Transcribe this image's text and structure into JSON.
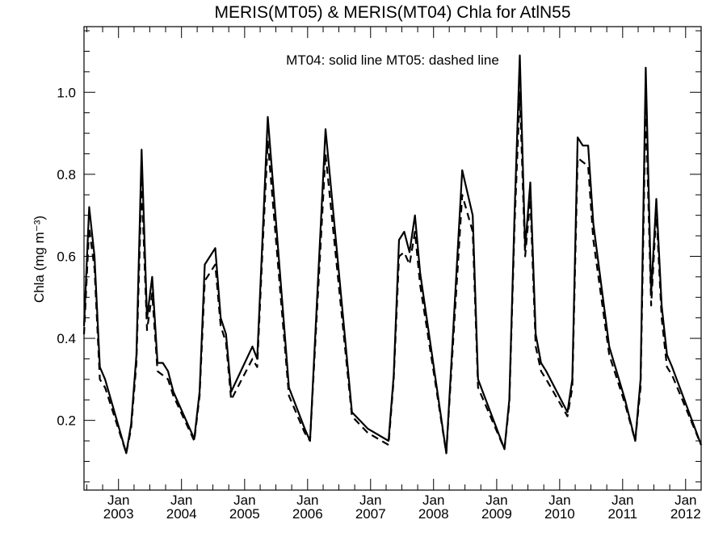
{
  "chart_data": {
    "type": "line",
    "title": "MERIS(MT05) & MERIS(MT04)  Chla for AtlN55",
    "annotation": "MT04: solid line   MT05: dashed line",
    "ylabel": "Chla (mg m⁻³)",
    "xlabel": "",
    "xlim": [
      "2002-06-15",
      "2012-03-31"
    ],
    "ylim": [
      0.03,
      1.16
    ],
    "y_ticks": [
      0.2,
      0.4,
      0.6,
      0.8,
      1.0
    ],
    "y_tick_labels": [
      "0.2",
      "0.4",
      "0.6",
      "0.8",
      "1.0"
    ],
    "x_ticks": [
      {
        "date": "2003-01-01",
        "month": "Jan",
        "year": "2003"
      },
      {
        "date": "2004-01-01",
        "month": "Jan",
        "year": "2004"
      },
      {
        "date": "2005-01-01",
        "month": "Jan",
        "year": "2005"
      },
      {
        "date": "2006-01-01",
        "month": "Jan",
        "year": "2006"
      },
      {
        "date": "2007-01-01",
        "month": "Jan",
        "year": "2007"
      },
      {
        "date": "2008-01-01",
        "month": "Jan",
        "year": "2008"
      },
      {
        "date": "2009-01-01",
        "month": "Jan",
        "year": "2009"
      },
      {
        "date": "2010-01-01",
        "month": "Jan",
        "year": "2010"
      },
      {
        "date": "2011-01-01",
        "month": "Jan",
        "year": "2011"
      },
      {
        "date": "2012-01-01",
        "month": "Jan",
        "year": "2012"
      }
    ],
    "grid": false,
    "series": [
      {
        "name": "MT04",
        "style": "solid",
        "color": "#000000",
        "x": [
          "2002-06-15",
          "2002-07-15",
          "2002-08-15",
          "2002-09-15",
          "2002-10-15",
          "2003-02-15",
          "2003-03-15",
          "2003-04-15",
          "2003-05-15",
          "2003-06-15",
          "2003-07-15",
          "2003-08-15",
          "2003-09-15",
          "2003-10-15",
          "2003-11-15",
          "2004-03-15",
          "2004-04-15",
          "2004-05-15",
          "2004-07-15",
          "2004-08-15",
          "2004-09-15",
          "2004-10-15",
          "2005-02-15",
          "2005-03-15",
          "2005-04-15",
          "2005-05-15",
          "2005-09-15",
          "2005-12-15",
          "2006-01-15",
          "2006-04-15",
          "2006-09-15",
          "2006-12-15",
          "2007-04-15",
          "2007-05-15",
          "2007-06-15",
          "2007-07-15",
          "2007-08-15",
          "2007-09-15",
          "2007-10-15",
          "2008-03-15",
          "2008-06-15",
          "2008-08-15",
          "2008-09-15",
          "2009-02-15",
          "2009-03-15",
          "2009-04-15",
          "2009-05-15",
          "2009-06-15",
          "2009-07-15",
          "2009-08-15",
          "2009-09-15",
          "2009-10-15",
          "2010-02-15",
          "2010-03-15",
          "2010-04-15",
          "2010-05-15",
          "2010-06-15",
          "2010-07-15",
          "2010-10-15",
          "2011-01-15",
          "2011-03-15",
          "2011-04-15",
          "2011-05-15",
          "2011-06-15",
          "2011-07-15",
          "2011-08-15",
          "2011-09-15",
          "2011-10-15",
          "2012-03-31"
        ],
        "y": [
          0.43,
          0.72,
          0.6,
          0.33,
          0.3,
          0.12,
          0.19,
          0.36,
          0.86,
          0.45,
          0.55,
          0.34,
          0.34,
          0.32,
          0.27,
          0.155,
          0.27,
          0.58,
          0.62,
          0.45,
          0.41,
          0.27,
          0.38,
          0.35,
          0.65,
          0.94,
          0.28,
          0.18,
          0.15,
          0.91,
          0.22,
          0.18,
          0.15,
          0.31,
          0.64,
          0.66,
          0.61,
          0.7,
          0.56,
          0.12,
          0.81,
          0.7,
          0.3,
          0.13,
          0.25,
          0.71,
          1.09,
          0.62,
          0.78,
          0.41,
          0.34,
          0.32,
          0.22,
          0.3,
          0.89,
          0.87,
          0.87,
          0.68,
          0.38,
          0.25,
          0.15,
          0.3,
          1.06,
          0.51,
          0.74,
          0.48,
          0.36,
          0.33,
          0.14
        ]
      },
      {
        "name": "MT05",
        "style": "dashed",
        "color": "#000000",
        "x": [
          "2002-06-15",
          "2002-07-15",
          "2002-08-15",
          "2002-09-15",
          "2002-10-15",
          "2003-02-15",
          "2003-03-15",
          "2003-04-15",
          "2003-05-15",
          "2003-06-15",
          "2003-07-15",
          "2003-08-15",
          "2003-09-15",
          "2003-10-15",
          "2003-11-15",
          "2004-03-15",
          "2004-04-15",
          "2004-05-15",
          "2004-07-15",
          "2004-08-15",
          "2004-09-15",
          "2004-10-15",
          "2005-02-15",
          "2005-03-15",
          "2005-04-15",
          "2005-05-15",
          "2005-09-15",
          "2005-12-15",
          "2006-01-15",
          "2006-04-15",
          "2006-09-15",
          "2006-12-15",
          "2007-04-15",
          "2007-05-15",
          "2007-06-15",
          "2007-07-15",
          "2007-08-15",
          "2007-09-15",
          "2007-10-15",
          "2008-03-15",
          "2008-06-15",
          "2008-08-15",
          "2008-09-15",
          "2009-02-15",
          "2009-03-15",
          "2009-04-15",
          "2009-05-15",
          "2009-06-15",
          "2009-07-15",
          "2009-08-15",
          "2009-09-15",
          "2009-10-15",
          "2010-02-15",
          "2010-03-15",
          "2010-04-15",
          "2010-05-15",
          "2010-06-15",
          "2010-07-15",
          "2010-10-15",
          "2011-01-15",
          "2011-03-15",
          "2011-04-15",
          "2011-05-15",
          "2011-06-15",
          "2011-07-15",
          "2011-08-15",
          "2011-09-15",
          "2011-10-15",
          "2012-03-31"
        ],
        "y": [
          0.41,
          0.67,
          0.57,
          0.3,
          0.28,
          0.12,
          0.18,
          0.34,
          0.78,
          0.42,
          0.51,
          0.32,
          0.31,
          0.3,
          0.26,
          0.15,
          0.26,
          0.54,
          0.58,
          0.43,
          0.39,
          0.25,
          0.35,
          0.33,
          0.62,
          0.88,
          0.26,
          0.17,
          0.15,
          0.85,
          0.21,
          0.17,
          0.14,
          0.3,
          0.6,
          0.61,
          0.58,
          0.66,
          0.53,
          0.12,
          0.75,
          0.66,
          0.28,
          0.13,
          0.24,
          0.68,
          1.0,
          0.6,
          0.74,
          0.38,
          0.32,
          0.3,
          0.21,
          0.28,
          0.84,
          0.83,
          0.82,
          0.64,
          0.36,
          0.24,
          0.15,
          0.28,
          0.97,
          0.48,
          0.71,
          0.45,
          0.33,
          0.31,
          0.14
        ]
      }
    ]
  }
}
